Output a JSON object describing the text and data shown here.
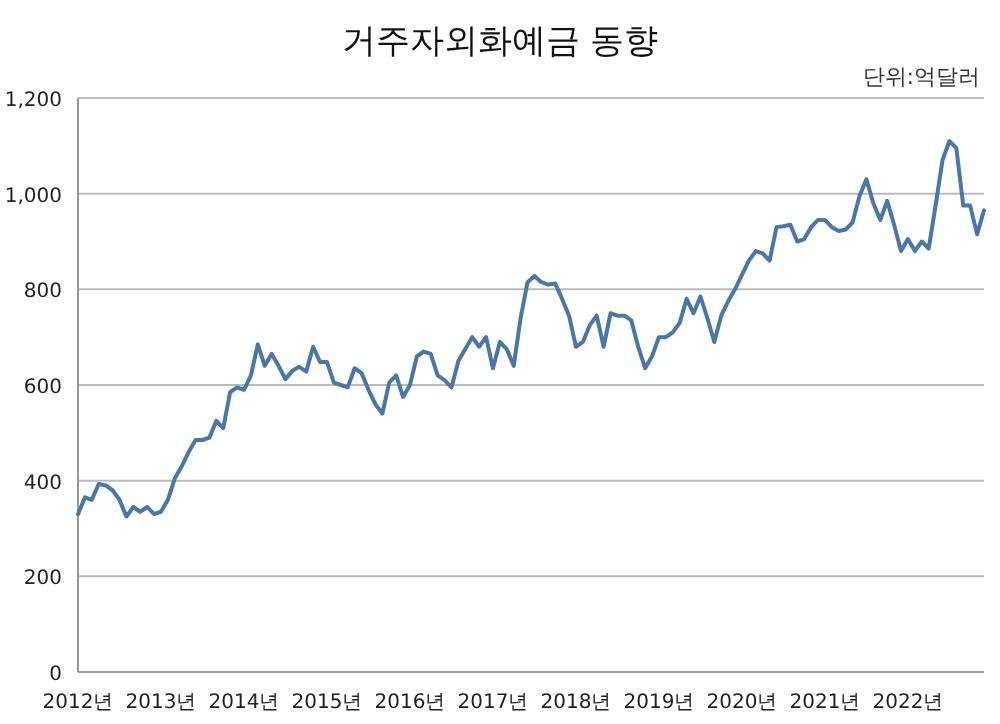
{
  "chart_data": {
    "type": "line",
    "title": "거주자외화예금 동향",
    "annotations": [
      "단위:억달러"
    ],
    "categories": [
      "2012년",
      null,
      null,
      null,
      null,
      null,
      null,
      null,
      null,
      null,
      null,
      null,
      "2013년",
      null,
      null,
      null,
      null,
      null,
      null,
      null,
      null,
      null,
      null,
      null,
      "2014년",
      null,
      null,
      null,
      null,
      null,
      null,
      null,
      null,
      null,
      null,
      null,
      "2015년",
      null,
      null,
      null,
      null,
      null,
      null,
      null,
      null,
      null,
      null,
      null,
      "2016년",
      null,
      null,
      null,
      null,
      null,
      null,
      null,
      null,
      null,
      null,
      null,
      "2017년",
      null,
      null,
      null,
      null,
      null,
      null,
      null,
      null,
      null,
      null,
      null,
      "2018년",
      null,
      null,
      null,
      null,
      null,
      null,
      null,
      null,
      null,
      null,
      null,
      "2019년",
      null,
      null,
      null,
      null,
      null,
      null,
      null,
      null,
      null,
      null,
      null,
      "2020년",
      null,
      null,
      null,
      null,
      null,
      null,
      null,
      null,
      null,
      null,
      null,
      "2021년",
      null,
      null,
      null,
      null,
      null,
      null,
      null,
      null,
      null,
      null,
      null,
      "2022년",
      null,
      null,
      null,
      null,
      null,
      null,
      null,
      null,
      null,
      null,
      null
    ],
    "series": [
      {
        "color": "#4a76a8",
        "values": [
          330,
          365,
          360,
          393,
          390,
          380,
          360,
          325,
          345,
          335,
          345,
          330,
          335,
          360,
          405,
          430,
          460,
          485,
          485,
          490,
          525,
          510,
          585,
          595,
          590,
          620,
          685,
          640,
          665,
          640,
          612,
          630,
          638,
          628,
          680,
          648,
          648,
          605,
          600,
          595,
          635,
          625,
          590,
          560,
          540,
          605,
          620,
          575,
          600,
          660,
          670,
          665,
          620,
          610,
          595,
          650,
          675,
          700,
          680,
          700,
          635,
          690,
          675,
          640,
          740,
          815,
          828,
          815,
          810,
          812,
          780,
          745,
          680,
          690,
          725,
          745,
          680,
          750,
          745,
          745,
          735,
          680,
          635,
          660,
          700,
          700,
          710,
          730,
          780,
          750,
          785,
          740,
          690,
          745,
          775,
          800,
          830,
          860,
          880,
          875,
          860,
          930,
          932,
          935,
          900,
          905,
          930,
          945,
          945,
          930,
          922,
          925,
          940,
          995,
          1030,
          980,
          945,
          985,
          935,
          880,
          905,
          880,
          900,
          885,
          975,
          1070,
          1110,
          1095,
          975,
          975,
          915,
          965
        ]
      }
    ],
    "ylim": [
      0,
      1200
    ],
    "yticks": [
      0,
      {
        "value": 200,
        "label": "200"
      },
      {
        "value": 400,
        "label": "400"
      },
      {
        "value": 600,
        "label": "600"
      },
      {
        "value": 800,
        "label": "800"
      },
      {
        "value": 1000,
        "label": "1,000"
      },
      {
        "value": 1200,
        "label": "1,200"
      }
    ],
    "grid": "y",
    "marker": "none",
    "line_style": "solid"
  }
}
